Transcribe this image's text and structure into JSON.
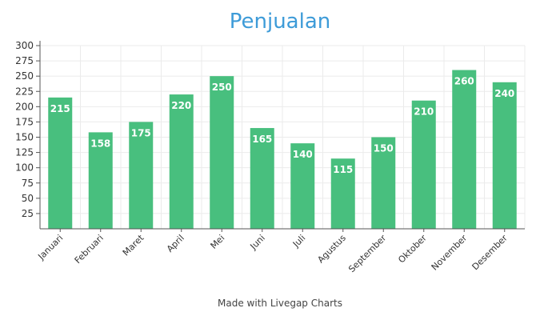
{
  "colors": {
    "bar": "#48bf7e",
    "title": "#3d9bd8",
    "grid": "#ebebeb",
    "axis": "#555555"
  },
  "footer": {
    "credit": "Made with Livegap Charts"
  },
  "chart_data": {
    "type": "bar",
    "title": "Penjualan",
    "xlabel": "",
    "ylabel": "",
    "categories": [
      "Januari",
      "Februari",
      "Maret",
      "April",
      "Mei",
      "Juni",
      "Juli",
      "Agustus",
      "September",
      "Oktober",
      "November",
      "Desember"
    ],
    "values": [
      215,
      158,
      175,
      220,
      250,
      165,
      140,
      115,
      150,
      210,
      260,
      240
    ],
    "ylim": [
      0,
      300
    ],
    "yticks": [
      25,
      50,
      75,
      100,
      125,
      150,
      175,
      200,
      225,
      250,
      275,
      300
    ],
    "grid": true,
    "data_labels": true,
    "legend": "none"
  }
}
